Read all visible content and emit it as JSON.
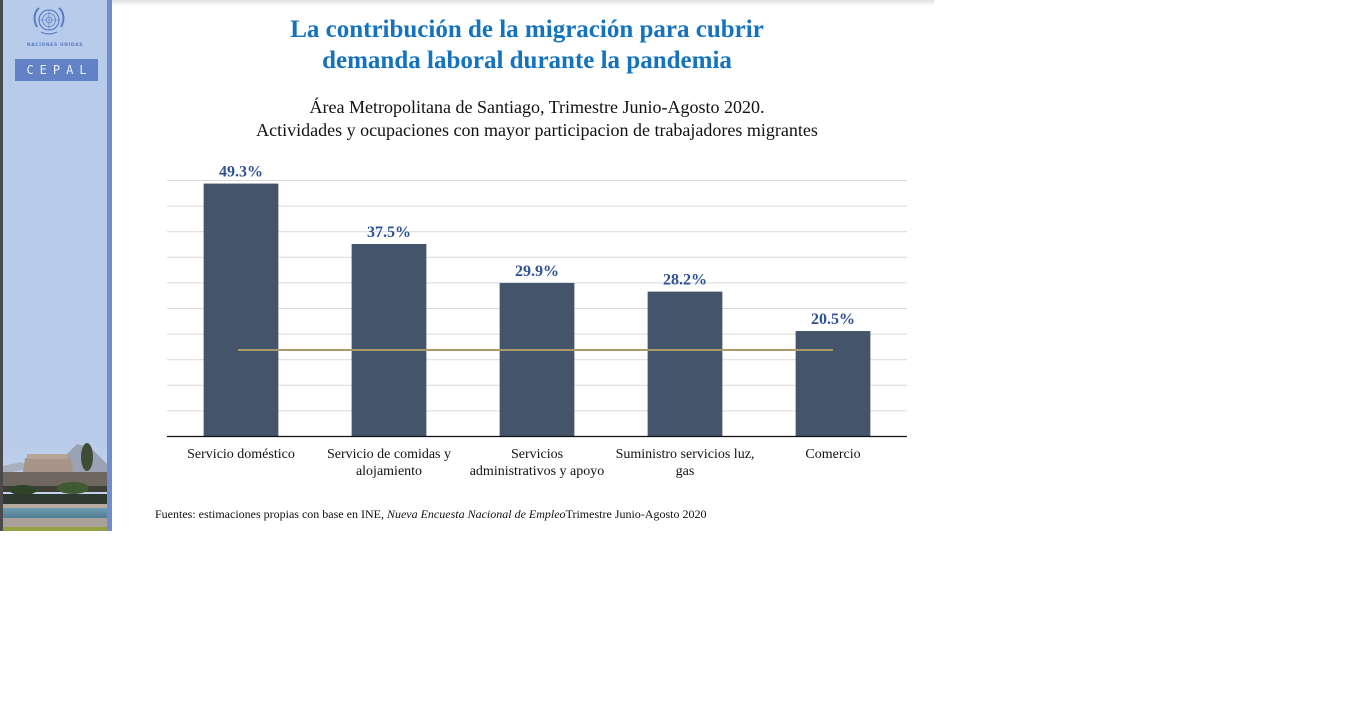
{
  "slide": {
    "title_line1": "La contribución de la migración para cubrir",
    "title_line2": "demanda laboral durante la pandemia",
    "subtitle_line1": "Área Metropolitana de Santiago, Trimestre Junio-Agosto 2020.",
    "subtitle_line2": "Actividades y ocupaciones con mayor participacion de trabajadores migrantes",
    "source_prefix": "Fuentes: estimaciones propias con base en INE, ",
    "source_italic": "Nueva Encuesta Nacional de Empleo",
    "source_suffix": "Trimestre Junio-Agosto 2020"
  },
  "branding": {
    "org_name": "NACIONES UNIDAS",
    "logo_text": "CEPAL",
    "logo_icon": "un-emblem-icon",
    "photo": "cepal-building-photo"
  },
  "colors": {
    "title": "#1472be",
    "bar": "#44546a",
    "value_label": "#2e5196",
    "reference_line": "#a89a6a",
    "gridline": "#d9d9d9",
    "sidebar": "#b7cbea"
  },
  "chart_data": {
    "type": "bar",
    "title": "La contribución de la migración para cubrir demanda laboral durante la pandemia",
    "subtitle": "Área Metropolitana de Santiago, Trimestre Junio-Agosto 2020. Actividades y ocupaciones con mayor participacion de trabajadores migrantes",
    "categories": [
      [
        "Servicio doméstico"
      ],
      [
        "Servicio de comidas y",
        "alojamiento"
      ],
      [
        "Servicios",
        "administrativos y apoyo"
      ],
      [
        "Suministro servicios luz,",
        "gas"
      ],
      [
        "Comercio"
      ]
    ],
    "values": [
      49.3,
      37.5,
      29.9,
      28.2,
      20.5
    ],
    "value_labels": [
      "49.3%",
      "37.5%",
      "29.9%",
      "28.2%",
      "20.5%"
    ],
    "unit": "%",
    "reference_line": {
      "value": 16.8,
      "label": ""
    },
    "xlabel": "",
    "ylabel": "",
    "ylim": [
      0,
      50
    ],
    "gridline_step": 5,
    "grid": true,
    "y_tick_labels_visible": false,
    "legend": "none"
  }
}
